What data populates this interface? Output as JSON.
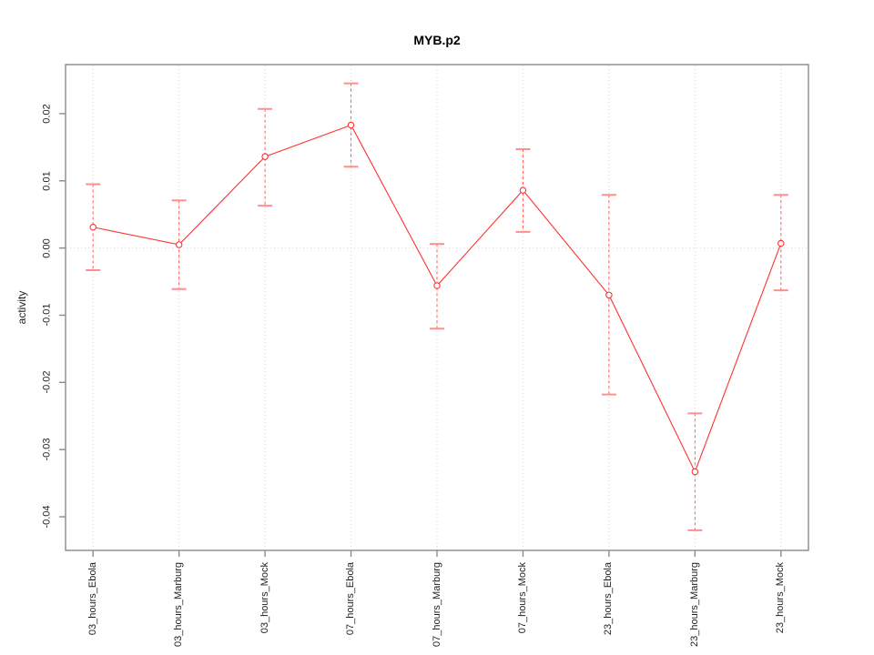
{
  "chart_data": {
    "type": "line",
    "title": "MYB.p2",
    "ylabel": "activity",
    "xlabel": "",
    "categories": [
      "03_hours_Ebola",
      "03_hours_Marburg",
      "03_hours_Mock",
      "07_hours_Ebola",
      "07_hours_Marburg",
      "07_hours_Mock",
      "23_hours_Ebola",
      "23_hours_Marburg",
      "23_hours_Mock"
    ],
    "values": [
      0.0031,
      0.0005,
      0.0136,
      0.0183,
      -0.0056,
      0.0086,
      -0.007,
      -0.0333,
      0.0007
    ],
    "error_low": [
      -0.0033,
      -0.0061,
      0.0063,
      0.0121,
      -0.012,
      0.0024,
      -0.0218,
      -0.042,
      -0.0063
    ],
    "error_high": [
      0.0095,
      0.0071,
      0.0207,
      0.0245,
      0.0006,
      0.0147,
      0.0079,
      -0.0246,
      0.0079
    ],
    "ytick_labels": [
      "0.02",
      "0.01",
      "0.00",
      "-0.01",
      "-0.02",
      "-0.03",
      "-0.04"
    ],
    "ytick_values": [
      0.02,
      0.01,
      0.0,
      -0.01,
      -0.02,
      -0.03,
      -0.04
    ],
    "ylim": [
      -0.045,
      0.0273
    ],
    "grid": "vertical dotted gridlines at each category; dotted horizontal line at y=0",
    "legend": "none",
    "marker": "open-circle",
    "colors": {
      "series": "#ff3232",
      "error_bar_stem": "#ff5a5a",
      "error_bar_cap": "#ff8f8f",
      "grid": "#d6d6d6",
      "axis": "#8a8a8a",
      "text": "#1f1f1f",
      "title": "#000000",
      "background": "#ffffff"
    }
  }
}
